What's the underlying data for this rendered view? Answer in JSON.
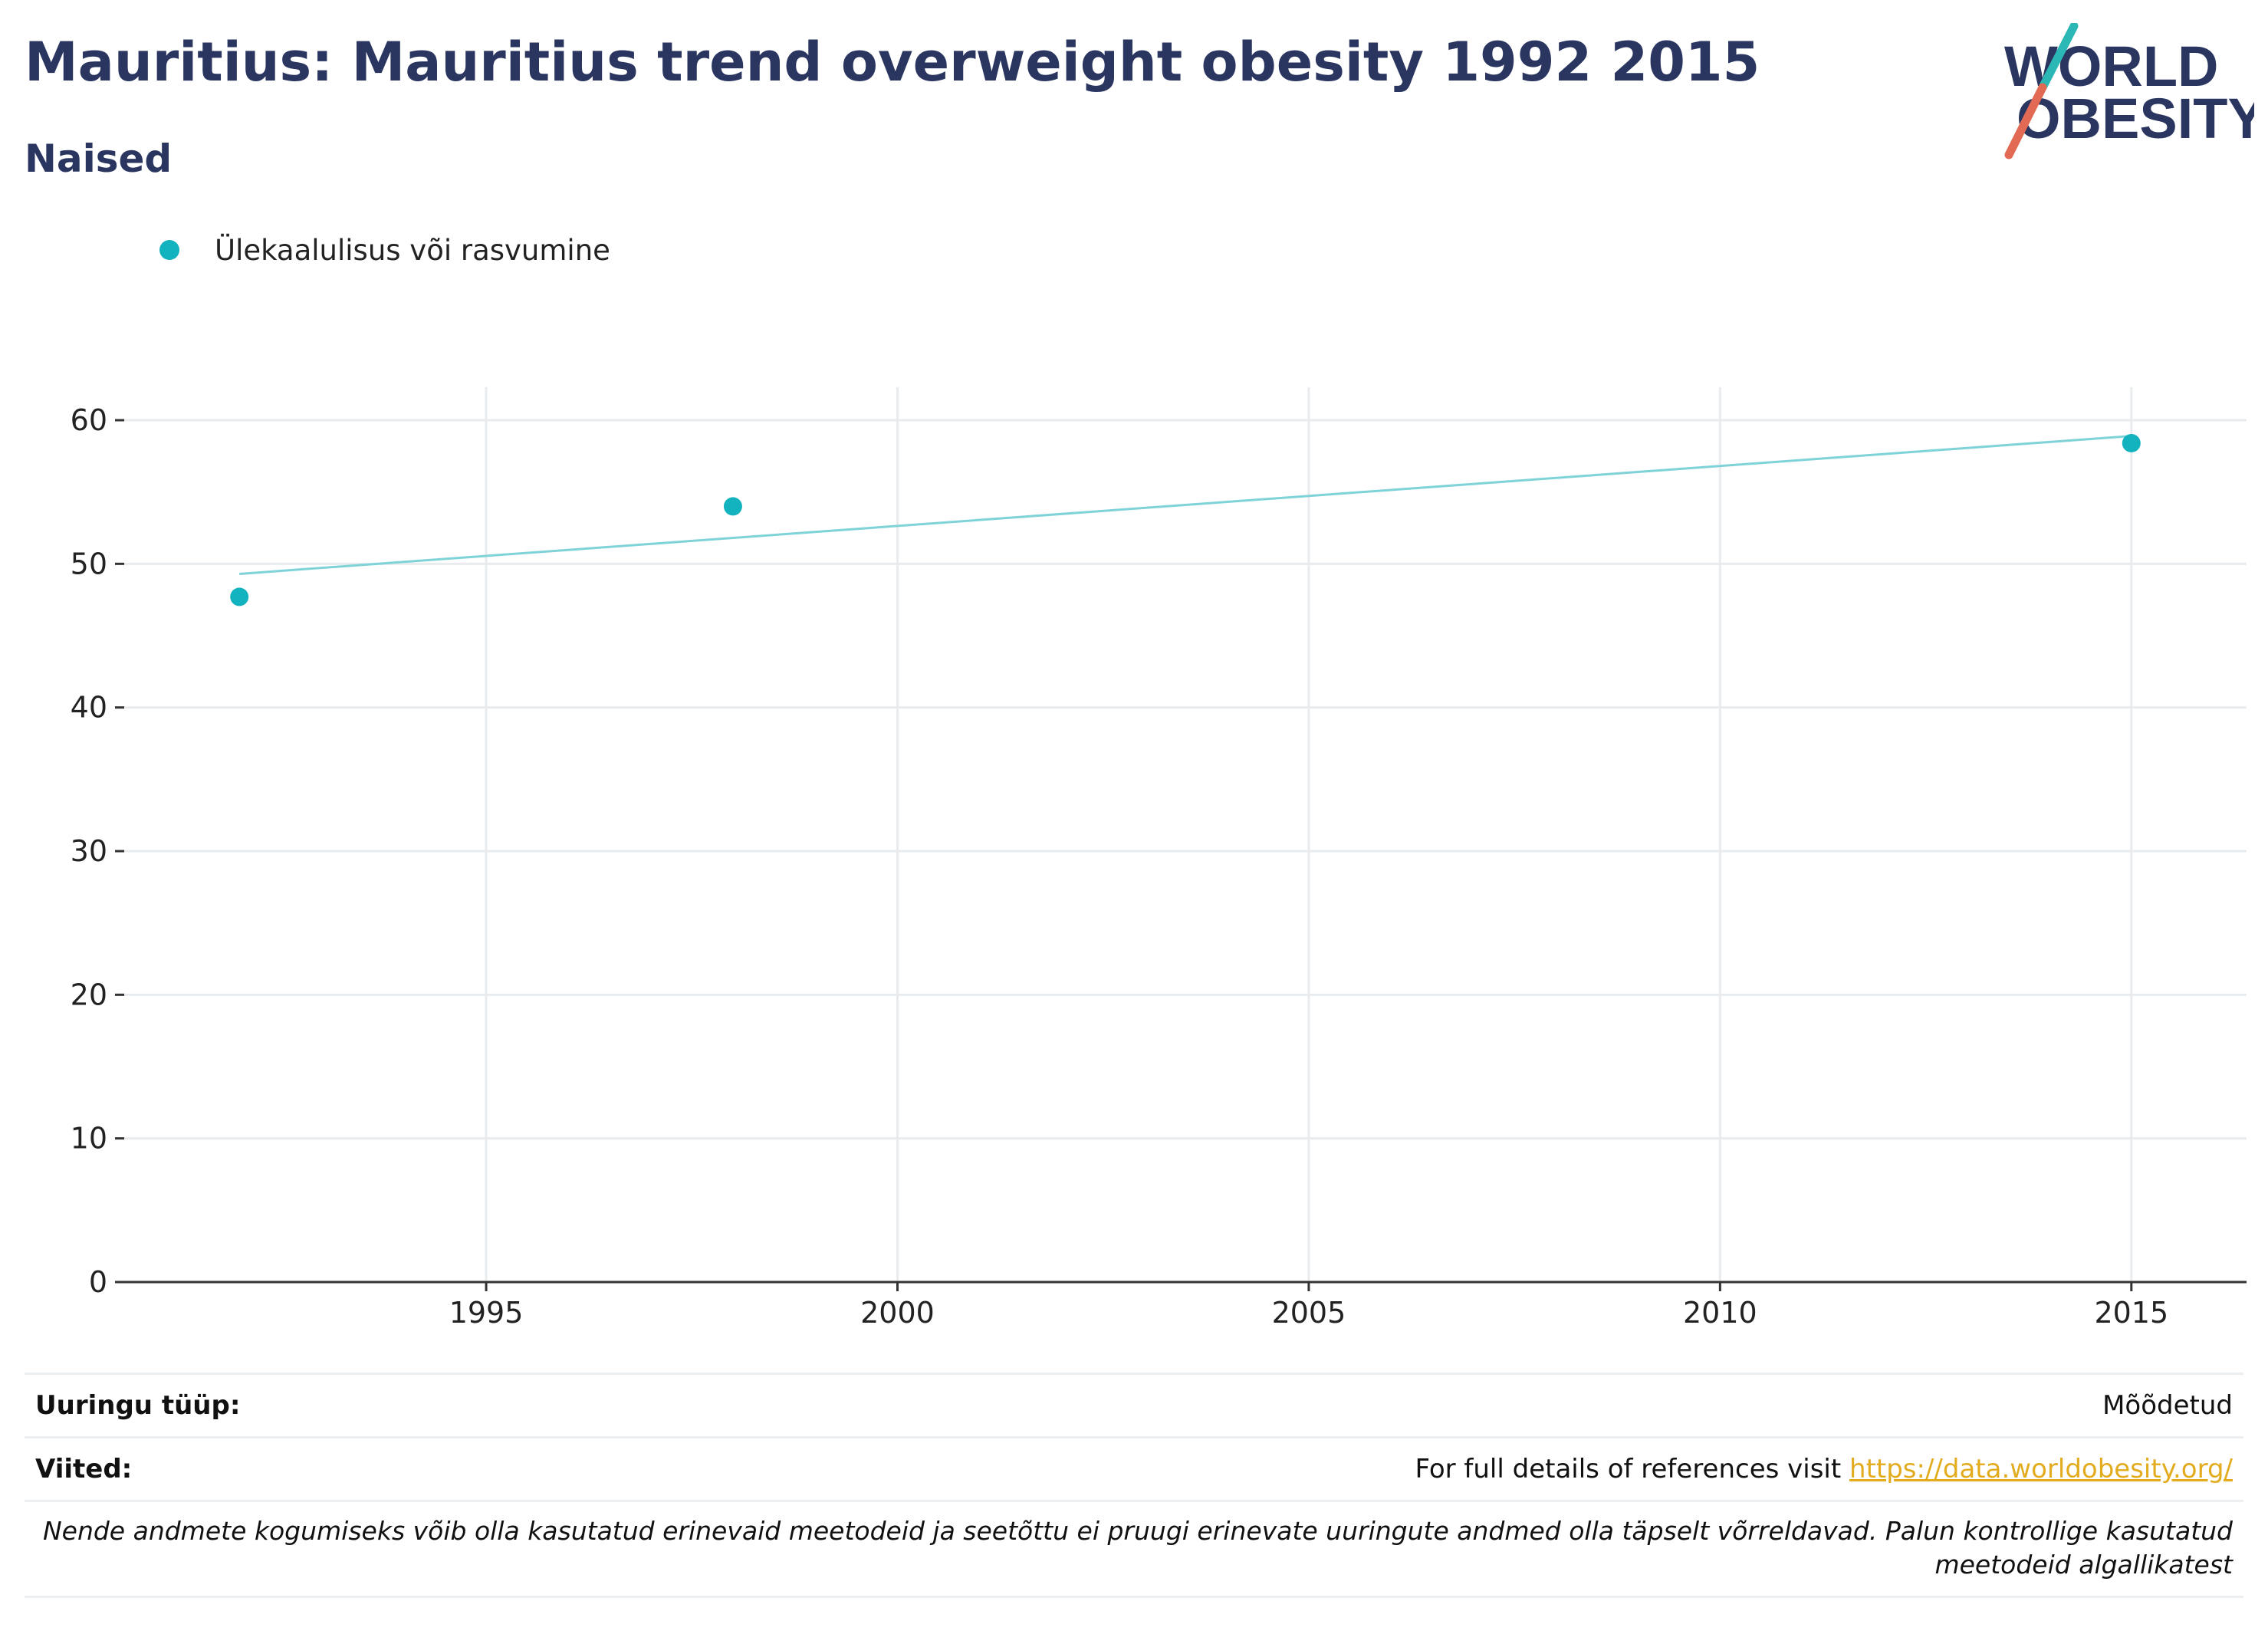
{
  "header": {
    "title": "Mauritius: Mauritius trend overweight obesity 1992 2015",
    "subtitle": "Naised"
  },
  "logo": {
    "line1": "WORLD",
    "line2": "OBESITY",
    "slash_colors": [
      "#2bb7b3",
      "#e26a55"
    ]
  },
  "colors": {
    "series": "#13b2bf",
    "trend": "#7fd3d8",
    "text_dark": "#2a3560",
    "link": "#e3ac1f"
  },
  "chart_data": {
    "type": "scatter",
    "title": "Mauritius: Mauritius trend overweight obesity 1992 2015",
    "subtitle": "Naised",
    "series": [
      {
        "name": "Ülekaalulisus või rasvumine",
        "x": [
          1992,
          1998,
          2015
        ],
        "y": [
          47.7,
          54.0,
          58.4
        ]
      }
    ],
    "trendline": {
      "x": [
        1992,
        2015
      ],
      "y": [
        49.3,
        58.9
      ]
    },
    "x_ticks": [
      "1995",
      "2000",
      "2005",
      "2010",
      "2015"
    ],
    "y_ticks": [
      "0",
      "10",
      "20",
      "30",
      "40",
      "50",
      "60"
    ],
    "xlim": [
      1990.6,
      2016.4
    ],
    "ylim": [
      0,
      62
    ],
    "grid": true,
    "legend_position": "top-left"
  },
  "footer": {
    "survey_type_label": "Uuringu tüüp:",
    "survey_type_value": "Mõõdetud",
    "references_label": "Viited:",
    "references_text": "For full details of references visit ",
    "references_link": "https://data.worldobesity.org/",
    "note": "Nende andmete kogumiseks võib olla kasutatud erinevaid meetodeid ja seetõttu ei pruugi erinevate uuringute andmed olla täpselt võrreldavad. Palun kontrollige kasutatud meetodeid algallikatest"
  }
}
